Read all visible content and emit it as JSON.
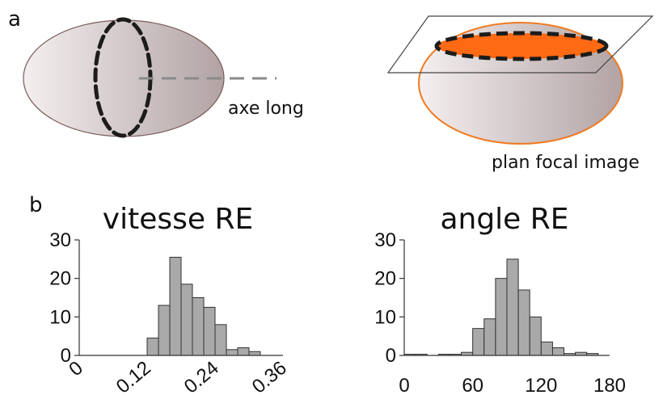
{
  "panel_a": {
    "label": "a",
    "annotation_long_axis": "axe long",
    "annotation_focal_plane": "plan focal image",
    "colors": {
      "ellipsoid_shade": "#b3a4a5",
      "ellipsoid_light": "#f3eeef",
      "focal_section": "#ff6a13",
      "focal_outline": "#f07a21",
      "dashed_section": "#1c1c1c"
    }
  },
  "panel_b": {
    "label": "b"
  },
  "chart_data": [
    {
      "type": "bar",
      "title": "vitesse RE",
      "xlabel": "",
      "ylabel": "",
      "yticks": [
        "0",
        "10",
        "20",
        "30"
      ],
      "xticks": [
        "0",
        "0.12",
        "0.24",
        "0.36"
      ],
      "ylim": [
        0,
        30
      ],
      "xlim": [
        0,
        0.36
      ],
      "bin_width": 0.02,
      "categories": [
        "0–0.02",
        "0.02–0.04",
        "0.04–0.06",
        "0.06–0.08",
        "0.08–0.10",
        "0.10–0.12",
        "0.12–0.14",
        "0.14–0.16",
        "0.16–0.18",
        "0.18–0.20",
        "0.20–0.22",
        "0.22–0.24",
        "0.24–0.26",
        "0.26–0.28",
        "0.28–0.30",
        "0.30–0.32",
        "0.32–0.34",
        "0.34–0.36"
      ],
      "values": [
        0,
        0,
        0,
        0,
        0,
        0,
        4.5,
        13,
        25.5,
        18.5,
        15,
        12.5,
        8,
        1.5,
        2,
        1,
        0,
        0
      ],
      "grid": false
    },
    {
      "type": "bar",
      "title": "angle RE",
      "xlabel": "",
      "ylabel": "",
      "yticks": [
        "0",
        "10",
        "20",
        "30"
      ],
      "xticks": [
        "0",
        "60",
        "120",
        "180"
      ],
      "ylim": [
        0,
        30
      ],
      "xlim": [
        0,
        180
      ],
      "bin_width": 10,
      "categories": [
        "0–10",
        "10–20",
        "20–30",
        "30–40",
        "40–50",
        "50–60",
        "60–70",
        "70–80",
        "80–90",
        "90–100",
        "100–110",
        "110–120",
        "120–130",
        "130–140",
        "140–150",
        "150–160",
        "160–170",
        "170–180"
      ],
      "values": [
        0.3,
        0.3,
        0,
        0.3,
        0.3,
        0.8,
        7,
        9.5,
        20,
        25,
        17,
        10,
        3.5,
        2,
        0.5,
        0.8,
        0.5,
        0
      ],
      "grid": false
    }
  ]
}
